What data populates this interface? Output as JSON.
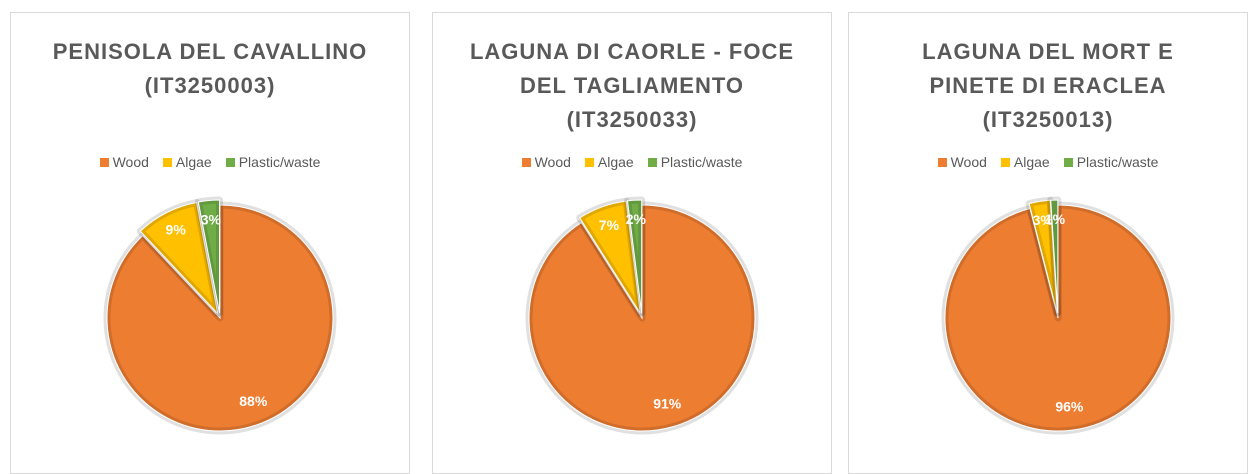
{
  "chart_data": [
    {
      "type": "pie",
      "title": "PENISOLA DEL CAVALLINO (IT3250003)",
      "categories": [
        "Wood",
        "Algae",
        "Plastic/waste"
      ],
      "values": [
        88,
        9,
        3
      ],
      "value_labels": [
        "88%",
        "9%",
        "3%"
      ],
      "colors": [
        "#ED7D31",
        "#FFC000",
        "#70AD47"
      ],
      "legend": "top"
    },
    {
      "type": "pie",
      "title": "LAGUNA DI CAORLE - FOCE DEL TAGLIAMENTO (IT3250033)",
      "categories": [
        "Wood",
        "Algae",
        "Plastic/waste"
      ],
      "values": [
        91,
        7,
        2
      ],
      "value_labels": [
        "91%",
        "7%",
        "2%"
      ],
      "colors": [
        "#ED7D31",
        "#FFC000",
        "#70AD47"
      ],
      "legend": "top"
    },
    {
      "type": "pie",
      "title": "LAGUNA DEL MORT E PINETE DI ERACLEA (IT3250013)",
      "categories": [
        "Wood",
        "Algae",
        "Plastic/waste"
      ],
      "values": [
        96,
        3,
        1
      ],
      "value_labels": [
        "96%",
        "3%",
        "1%"
      ],
      "colors": [
        "#ED7D31",
        "#FFC000",
        "#70AD47"
      ],
      "legend": "top"
    }
  ]
}
